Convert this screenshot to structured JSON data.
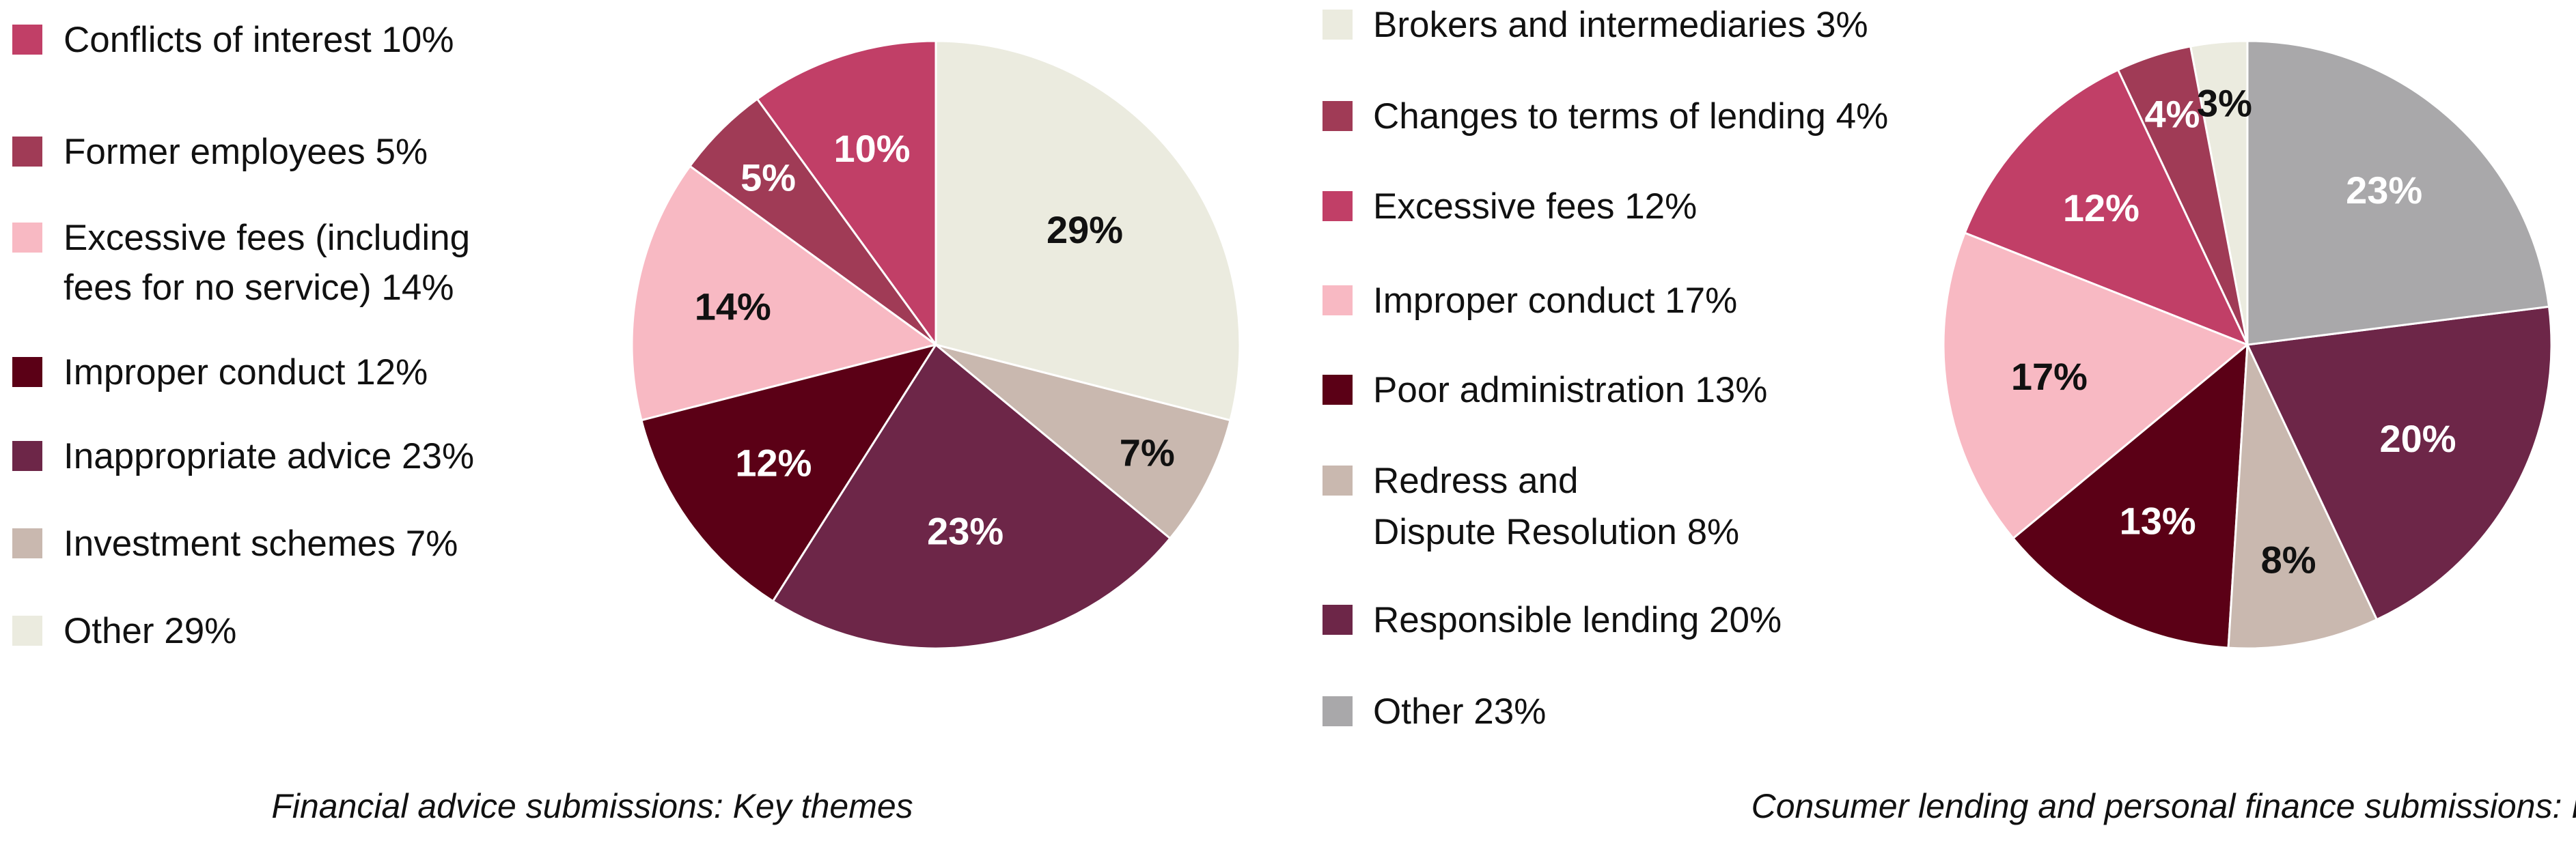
{
  "chart_data": [
    {
      "type": "pie",
      "caption": "Financial advice submissions: Key themes",
      "slices": [
        {
          "legend": "Conflicts of interest 10%",
          "label": "10%",
          "value": 10,
          "color": "#c13f67",
          "label_color": "#ffffff"
        },
        {
          "legend": "Former employees 5%",
          "label": "5%",
          "value": 5,
          "color": "#a03b56",
          "label_color": "#ffffff"
        },
        {
          "legend": "Excessive fees (including fees for no service) 14%",
          "label": "14%",
          "value": 14,
          "color": "#f8b9c3",
          "label_color": "#111111"
        },
        {
          "legend": "Improper conduct 12%",
          "label": "12%",
          "value": 12,
          "color": "#5b0016",
          "label_color": "#ffffff"
        },
        {
          "legend": "Inappropriate advice 23%",
          "label": "23%",
          "value": 23,
          "color": "#6d2648",
          "label_color": "#ffffff"
        },
        {
          "legend": "Investment schemes 7%",
          "label": "7%",
          "value": 7,
          "color": "#c9b8af",
          "label_color": "#111111"
        },
        {
          "legend": "Other 29%",
          "label": "29%",
          "value": 29,
          "color": "#ebebdf",
          "label_color": "#111111"
        }
      ]
    },
    {
      "type": "pie",
      "caption": "Consumer lending and personal finance submissions: Key themes",
      "slices": [
        {
          "legend": "Brokers and intermediaries 3%",
          "label": "3%",
          "value": 3,
          "color": "#ebebdf",
          "label_color": "#111111"
        },
        {
          "legend": "Changes to terms of lending 4%",
          "label": "4%",
          "value": 4,
          "color": "#a03b56",
          "label_color": "#ffffff"
        },
        {
          "legend": "Excessive fees 12%",
          "label": "12%",
          "value": 12,
          "color": "#c13f67",
          "label_color": "#ffffff"
        },
        {
          "legend": "Improper conduct 17%",
          "label": "17%",
          "value": 17,
          "color": "#f8b9c3",
          "label_color": "#111111"
        },
        {
          "legend": "Poor administration 13%",
          "label": "13%",
          "value": 13,
          "color": "#5b0016",
          "label_color": "#ffffff"
        },
        {
          "legend": "Redress and Dispute Resolution 8%",
          "label": "8%",
          "value": 8,
          "color": "#c9b8af",
          "label_color": "#111111"
        },
        {
          "legend": "Responsible lending 20%",
          "label": "20%",
          "value": 20,
          "color": "#6d2648",
          "label_color": "#ffffff"
        },
        {
          "legend": "Other 23%",
          "label": "23%",
          "value": 23,
          "color": "#a9a8aa",
          "label_color": "#ffffff"
        }
      ]
    }
  ]
}
